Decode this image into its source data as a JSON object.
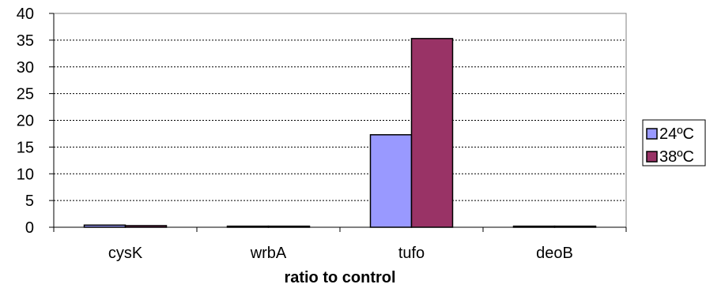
{
  "chart_data": {
    "type": "bar",
    "title": "",
    "xlabel": "ratio to control",
    "ylabel": "",
    "ylim": [
      0,
      40
    ],
    "yticks": [
      0,
      5,
      10,
      15,
      20,
      25,
      30,
      35,
      40
    ],
    "grid": "horizontal dashed",
    "legend_position": "right",
    "categories": [
      "cysK",
      "wrbA",
      "tufo",
      "deoB"
    ],
    "series": [
      {
        "name": "24ºC",
        "color": "#9999ff",
        "values": [
          0.4,
          0.2,
          17.3,
          0.2
        ]
      },
      {
        "name": "38ºC",
        "color": "#993366",
        "values": [
          0.3,
          0.2,
          35.3,
          0.2
        ]
      }
    ]
  }
}
